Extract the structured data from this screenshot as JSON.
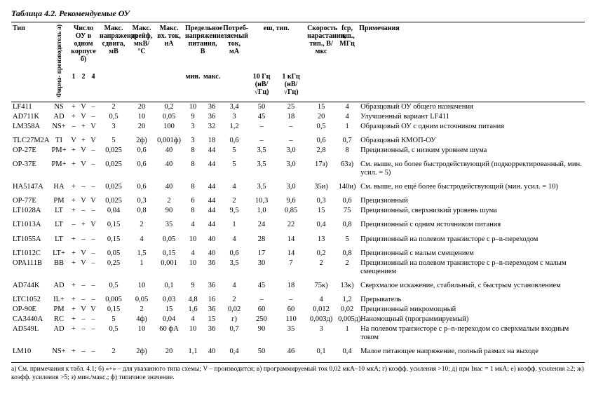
{
  "title": "Таблица 4.2. Рекомендуемые ОУ",
  "head": {
    "type": "Тип",
    "mfr": "Фирма-\nпроизводитель а)",
    "count": "Число ОУ\nв одном\nкорпусе б)",
    "n1": "1",
    "n2": "2",
    "n4": "4",
    "offset": "Макс.\nнапряжение\nсдвига,\nмВ",
    "drift": "Макс.\nдрейф,\nмкВ/°С",
    "bias": "Макс.\nвх. ток,\nнА",
    "supply": "Предельное\nнапряжение\nпитания, В",
    "vmin": "мин.",
    "vmax": "макс.",
    "iq": "Потреб-\nляемый\nток,\nмА",
    "enoise": "eш, тип.",
    "e10": "10 Гц\n(нВ/√Гц)",
    "e1k": "1 кГц\n(нВ/√Гц)",
    "sr": "Скорость\nнарастания,\nтип.,\nВ/мкс",
    "ft": "fср,\nтип.,\nМГц",
    "notes": "Примечания"
  },
  "rows": [
    {
      "type": "LF411",
      "mfr": "NS",
      "n1": "+",
      "n2": "V",
      "n4": "–",
      "off": "2",
      "drift": "20",
      "bias": "0,2",
      "vmin": "10",
      "vmax": "36",
      "iq": "3,4",
      "e10": "50",
      "e1k": "25",
      "sr": "15",
      "ft": "4",
      "notes": "Образцовый ОУ общего назначения"
    },
    {
      "type": "AD711K",
      "mfr": "AD",
      "n1": "+",
      "n2": "V",
      "n4": "–",
      "off": "0,5",
      "drift": "10",
      "bias": "0,05",
      "vmin": "9",
      "vmax": "36",
      "iq": "3",
      "e10": "45",
      "e1k": "18",
      "sr": "20",
      "ft": "4",
      "notes": "Улучшенный вариант LF411"
    },
    {
      "type": "LM358A",
      "mfr": "NS+",
      "n1": "–",
      "n2": "+",
      "n4": "V",
      "off": "3",
      "drift": "20",
      "bias": "100",
      "vmin": "3",
      "vmax": "32",
      "iq": "1,2",
      "e10": "–",
      "e1k": "–",
      "sr": "0,5",
      "ft": "1",
      "notes": "Образцовый ОУ с одним источником питания"
    },
    {
      "type": "TLC27M2A",
      "mfr": "TI",
      "n1": "V",
      "n2": "+",
      "n4": "V",
      "off": "5",
      "drift": "2ф)",
      "bias": "0,001ф)",
      "vmin": "3",
      "vmax": "18",
      "iq": "0,6",
      "e10": "–",
      "e1k": "–",
      "sr": "0,6",
      "ft": "0,7",
      "notes": "Образцовый КМОП-ОУ",
      "sep": true
    },
    {
      "type": "OP-27E",
      "mfr": "PM+",
      "n1": "+",
      "n2": "V",
      "n4": "–",
      "off": "0,025",
      "drift": "0,6",
      "bias": "40",
      "vmin": "8",
      "vmax": "44",
      "iq": "5",
      "e10": "3,5",
      "e1k": "3,0",
      "sr": "2,8",
      "ft": "8",
      "notes": "Прецизионный, с низким уровнем шума"
    },
    {
      "type": "OP-37E",
      "mfr": "PM+",
      "n1": "+",
      "n2": "V",
      "n4": "–",
      "off": "0,025",
      "drift": "0,6",
      "bias": "40",
      "vmin": "8",
      "vmax": "44",
      "iq": "5",
      "e10": "3,5",
      "e1k": "3,0",
      "sr": "17з)",
      "ft": "63з)",
      "notes": "См. выше, но более быстродействующий (подкорректированный, мин. усил. = 5)",
      "sep": true
    },
    {
      "type": "HA5147A",
      "mfr": "HA",
      "n1": "+",
      "n2": "–",
      "n4": "–",
      "off": "0,025",
      "drift": "0,6",
      "bias": "40",
      "vmin": "8",
      "vmax": "44",
      "iq": "4",
      "e10": "3,5",
      "e1k": "3,0",
      "sr": "35и)",
      "ft": "140и)",
      "notes": "См. выше, но ещё более быстродействующий (мин. усил. = 10)",
      "sep": true
    },
    {
      "type": "OP-77E",
      "mfr": "PM",
      "n1": "+",
      "n2": "V",
      "n4": "V",
      "off": "0,025",
      "drift": "0,3",
      "bias": "2",
      "vmin": "6",
      "vmax": "44",
      "iq": "2",
      "e10": "10,3",
      "e1k": "9,6",
      "sr": "0,3",
      "ft": "0,6",
      "notes": "Прецизионный",
      "sep": true
    },
    {
      "type": "LT1028A",
      "mfr": "LT",
      "n1": "+",
      "n2": "–",
      "n4": "–",
      "off": "0,04",
      "drift": "0,8",
      "bias": "90",
      "vmin": "8",
      "vmax": "44",
      "iq": "9,5",
      "e10": "1,0",
      "e1k": "0,85",
      "sr": "15",
      "ft": "75",
      "notes": "Прецизионный, сверхнизкий уровень шума"
    },
    {
      "type": "LT1013A",
      "mfr": "LT",
      "n1": "–",
      "n2": "+",
      "n4": "V",
      "off": "0,15",
      "drift": "2",
      "bias": "35",
      "vmin": "4",
      "vmax": "44",
      "iq": "1",
      "e10": "24",
      "e1k": "22",
      "sr": "0,4",
      "ft": "0,8",
      "notes": "Прецизионный с одним источником питания",
      "sep": true
    },
    {
      "type": "LT1055A",
      "mfr": "LT",
      "n1": "+",
      "n2": "–",
      "n4": "–",
      "off": "0,15",
      "drift": "4",
      "bias": "0,05",
      "vmin": "10",
      "vmax": "40",
      "iq": "4",
      "e10": "28",
      "e1k": "14",
      "sr": "13",
      "ft": "5",
      "notes": "Прецизионный на полевом транзисторе с p–n-переходом",
      "sep": true
    },
    {
      "type": "LT1012C",
      "mfr": "LT+",
      "n1": "+",
      "n2": "V",
      "n4": "–",
      "off": "0,05",
      "drift": "1,5",
      "bias": "0,15",
      "vmin": "4",
      "vmax": "40",
      "iq": "0,6",
      "e10": "17",
      "e1k": "14",
      "sr": "0,2",
      "ft": "0,8",
      "notes": "Прецизионный с малым смещением",
      "sep": true
    },
    {
      "type": "OPA111B",
      "mfr": "BB",
      "n1": "+",
      "n2": "V",
      "n4": "–",
      "off": "0,25",
      "drift": "1",
      "bias": "0,001",
      "vmin": "10",
      "vmax": "36",
      "iq": "3,5",
      "e10": "30",
      "e1k": "7",
      "sr": "2",
      "ft": "2",
      "notes": "Прецизионный на полевом транзисторе с p–n-переходом с малым смещением"
    },
    {
      "type": "AD744K",
      "mfr": "AD",
      "n1": "+",
      "n2": "–",
      "n4": "–",
      "off": "0,5",
      "drift": "10",
      "bias": "0,1",
      "vmin": "9",
      "vmax": "36",
      "iq": "4",
      "e10": "45",
      "e1k": "18",
      "sr": "75к)",
      "ft": "13к)",
      "notes": "Сверхмалое искажение, стабильный, с быстрым установлением",
      "sep": true
    },
    {
      "type": "LTC1052",
      "mfr": "IL+",
      "n1": "+",
      "n2": "–",
      "n4": "–",
      "off": "0,005",
      "drift": "0,05",
      "bias": "0,03",
      "vmin": "4,8",
      "vmax": "16",
      "iq": "2",
      "e10": "–",
      "e1k": "–",
      "sr": "4",
      "ft": "1,2",
      "notes": "Прерыватель",
      "sep": true
    },
    {
      "type": "OP-90E",
      "mfr": "PM",
      "n1": "+",
      "n2": "V",
      "n4": "V",
      "off": "0,15",
      "drift": "2",
      "bias": "15",
      "vmin": "1,6",
      "vmax": "36",
      "iq": "0,02",
      "e10": "60",
      "e1k": "60",
      "sr": "0,012",
      "ft": "0,02",
      "notes": "Прецизионный микромощный"
    },
    {
      "type": "CA3440A",
      "mfr": "RC",
      "n1": "+",
      "n2": "–",
      "n4": "–",
      "off": "5",
      "drift": "4ф)",
      "bias": "0,04",
      "vmin": "4",
      "vmax": "15",
      "iq": "г)",
      "e10": "250",
      "e1k": "110",
      "sr": "0,003д)",
      "ft": "0,005д)",
      "notes": "Наномощный (программируемый)"
    },
    {
      "type": "AD549L",
      "mfr": "AD",
      "n1": "+",
      "n2": "–",
      "n4": "–",
      "off": "0,5",
      "drift": "10",
      "bias": "60 фА",
      "vmin": "10",
      "vmax": "36",
      "iq": "0,7",
      "e10": "90",
      "e1k": "35",
      "sr": "3",
      "ft": "1",
      "notes": "На полевом транзисторе с p–n-переходом со сверхмалым входным током"
    },
    {
      "type": "LM10",
      "mfr": "NS+",
      "n1": "+",
      "n2": "–",
      "n4": "–",
      "off": "2",
      "drift": "2ф)",
      "bias": "20",
      "vmin": "1,1",
      "vmax": "40",
      "iq": "0,4",
      "e10": "50",
      "e1k": "46",
      "sr": "0,1",
      "ft": "0,4",
      "notes": "Малое питающее напряжение, полный размах на выходе",
      "sep": true
    }
  ],
  "footnotes": "а) См. примечания к табл. 4.1;  б) «+» – для указанного типа схемы;  V – производится;  в) программируемый ток 0,02 мкА–10 мкА;  г) коэфф. усиления >10;  д) при Iнас = 1 мкА;  е) коэфф. усиления ≥2;  ж) коэфф. усиления >5;  з) мин./макс.;  ф) типичное значение."
}
